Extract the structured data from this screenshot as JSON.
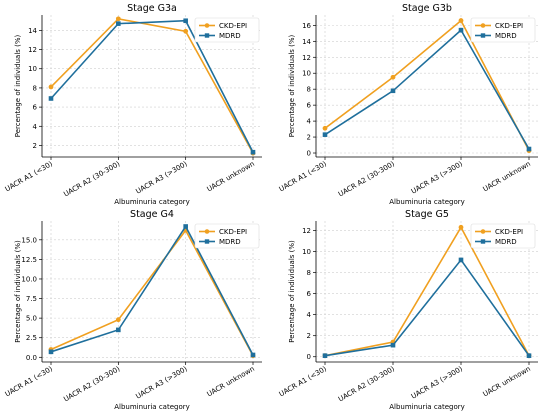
{
  "colors": {
    "CKD-EPI": "#f0a020",
    "MDRD": "#1f6f9c"
  },
  "chart_data": [
    {
      "type": "line",
      "title": "Stage G3a",
      "categories": [
        "UACR A1 (<30)",
        "UACR A2 (30-300)",
        "UACR A3 (>300)",
        "UACR unknown"
      ],
      "series": [
        {
          "name": "CKD-EPI",
          "values": [
            8.1,
            15.2,
            13.9,
            1.2
          ]
        },
        {
          "name": "MDRD",
          "values": [
            6.9,
            14.7,
            15.0,
            1.3
          ]
        }
      ],
      "xlabel": "Albuminuria category",
      "ylabel": "Percentage of individuals (%)",
      "ylim": [
        0.8,
        15.6
      ],
      "yticks": [
        2,
        4,
        6,
        8,
        10,
        12,
        14
      ],
      "ytick_labels": [
        "2",
        "4",
        "6",
        "8",
        "10",
        "12",
        "14"
      ],
      "grid": true,
      "legend": "top-right"
    },
    {
      "type": "line",
      "title": "Stage G3b",
      "categories": [
        "UACR A1 (<30)",
        "UACR A2 (30-300)",
        "UACR A3 (>300)",
        "UACR unknown"
      ],
      "series": [
        {
          "name": "CKD-EPI",
          "values": [
            3.1,
            9.5,
            16.6,
            0.3
          ]
        },
        {
          "name": "MDRD",
          "values": [
            2.3,
            7.8,
            15.4,
            0.5
          ]
        }
      ],
      "xlabel": "Albuminuria category",
      "ylabel": "Percentage of individuals (%)",
      "ylim": [
        -0.5,
        17.3
      ],
      "yticks": [
        0,
        2,
        4,
        6,
        8,
        10,
        12,
        14,
        16
      ],
      "ytick_labels": [
        "0",
        "2",
        "4",
        "6",
        "8",
        "10",
        "12",
        "14",
        "16"
      ],
      "grid": true,
      "legend": "top-right"
    },
    {
      "type": "line",
      "title": "Stage G4",
      "categories": [
        "UACR A1 (<30)",
        "UACR A2 (30-300)",
        "UACR A3 (>300)",
        "UACR unknown"
      ],
      "series": [
        {
          "name": "CKD-EPI",
          "values": [
            1.0,
            4.8,
            16.2,
            0.2
          ]
        },
        {
          "name": "MDRD",
          "values": [
            0.7,
            3.5,
            16.7,
            0.3
          ]
        }
      ],
      "xlabel": "Albuminuria category",
      "ylabel": "Percentage of individuals (%)",
      "ylim": [
        -0.6,
        17.4
      ],
      "yticks": [
        0,
        2.5,
        5,
        7.5,
        10,
        12.5,
        15
      ],
      "ytick_labels": [
        "0.0",
        "2.5",
        "5.0",
        "7.5",
        "10.0",
        "12.5",
        "15.0"
      ],
      "grid": true,
      "legend": "top-right"
    },
    {
      "type": "line",
      "title": "Stage G5",
      "categories": [
        "UACR A1 (<30)",
        "UACR A2 (30-300)",
        "UACR A3 (>300)",
        "UACR unknown"
      ],
      "series": [
        {
          "name": "CKD-EPI",
          "values": [
            0.1,
            1.4,
            12.3,
            0.1
          ]
        },
        {
          "name": "MDRD",
          "values": [
            0.1,
            1.1,
            9.2,
            0.1
          ]
        }
      ],
      "xlabel": "Albuminuria category",
      "ylabel": "Percentage of individuals (%)",
      "ylim": [
        -0.5,
        12.9
      ],
      "yticks": [
        0,
        2,
        4,
        6,
        8,
        10,
        12
      ],
      "ytick_labels": [
        "0",
        "2",
        "4",
        "6",
        "8",
        "10",
        "12"
      ],
      "grid": true,
      "legend": "top-right"
    }
  ]
}
